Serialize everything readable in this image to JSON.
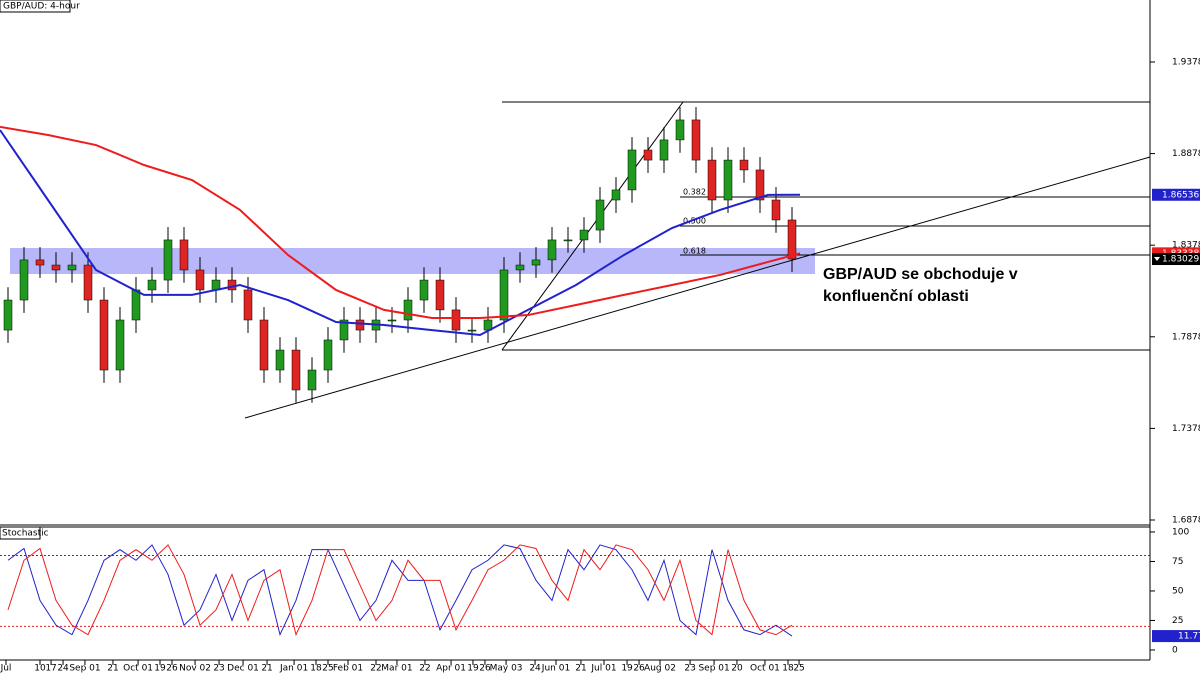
{
  "chart_data": [
    {
      "type": "candlestick",
      "title": "GBP/AUD: 4-hour",
      "x": [
        0,
        1,
        2,
        3,
        4,
        5,
        6,
        7,
        8,
        9,
        10,
        11,
        12,
        13,
        14,
        15,
        16,
        17,
        18,
        19,
        20,
        21,
        22,
        23,
        24,
        25,
        26,
        27,
        28,
        29,
        30,
        31,
        32,
        33,
        34,
        35,
        36,
        37,
        38,
        39,
        40,
        41,
        42,
        43,
        44,
        45,
        46,
        47,
        48,
        49
      ],
      "open": [
        1.7915,
        1.8079,
        1.8298,
        1.827,
        1.8243,
        1.827,
        1.8079,
        1.7697,
        1.797,
        1.8134,
        1.8188,
        1.8407,
        1.8243,
        1.8134,
        1.8188,
        1.8134,
        1.797,
        1.7697,
        1.7806,
        1.7588,
        1.7697,
        1.7861,
        1.797,
        1.7915,
        1.797,
        1.797,
        1.8079,
        1.8188,
        1.8025,
        1.7915,
        1.7915,
        1.797,
        1.8243,
        1.827,
        1.8298,
        1.8407,
        1.8407,
        1.8461,
        1.8625,
        1.868,
        1.8898,
        1.8843,
        1.8953,
        1.9062,
        1.8843,
        1.8625,
        1.8843,
        1.8789,
        1.8625,
        1.8516
      ],
      "high": [
        1.8149,
        1.8368,
        1.8368,
        1.834,
        1.834,
        1.834,
        1.8149,
        1.804,
        1.8204,
        1.8258,
        1.8477,
        1.8477,
        1.8313,
        1.8258,
        1.8258,
        1.8204,
        1.804,
        1.7876,
        1.7876,
        1.7767,
        1.7931,
        1.804,
        1.804,
        1.804,
        1.804,
        1.8149,
        1.8258,
        1.8258,
        1.8095,
        1.7985,
        1.804,
        1.8313,
        1.834,
        1.8368,
        1.8477,
        1.8477,
        1.8531,
        1.8695,
        1.875,
        1.8968,
        1.8968,
        1.9023,
        1.9132,
        1.9132,
        1.8913,
        1.8913,
        1.8913,
        1.8859,
        1.8695,
        1.8586
      ],
      "low": [
        1.7845,
        1.8009,
        1.82,
        1.8173,
        1.8173,
        1.8009,
        1.7627,
        1.7627,
        1.79,
        1.8064,
        1.8118,
        1.8173,
        1.8064,
        1.8064,
        1.8064,
        1.79,
        1.7627,
        1.7627,
        1.7518,
        1.7518,
        1.7627,
        1.7791,
        1.7845,
        1.7845,
        1.79,
        1.79,
        1.8009,
        1.7955,
        1.7845,
        1.7845,
        1.7845,
        1.79,
        1.8173,
        1.82,
        1.8228,
        1.8337,
        1.8337,
        1.8391,
        1.8555,
        1.861,
        1.8773,
        1.8773,
        1.8883,
        1.8773,
        1.8555,
        1.8555,
        1.8719,
        1.8555,
        1.8446,
        1.8233
      ],
      "close": [
        1.8079,
        1.8298,
        1.827,
        1.8243,
        1.827,
        1.8079,
        1.7697,
        1.797,
        1.8134,
        1.8188,
        1.8407,
        1.8243,
        1.8134,
        1.8188,
        1.8134,
        1.797,
        1.7697,
        1.7806,
        1.7588,
        1.7697,
        1.7861,
        1.797,
        1.7915,
        1.797,
        1.797,
        1.8079,
        1.8188,
        1.8025,
        1.7915,
        1.7915,
        1.797,
        1.8243,
        1.827,
        1.8298,
        1.8407,
        1.8407,
        1.8461,
        1.8625,
        1.868,
        1.8898,
        1.8843,
        1.8953,
        1.9062,
        1.8843,
        1.8625,
        1.8843,
        1.8789,
        1.8625,
        1.8516,
        1.83029
      ],
      "up_color": "#1f9a1f",
      "down_color": "#e02424",
      "series": [
        {
          "color": "#2222cc",
          "x": [
            -0.5,
            2.5,
            5.5,
            8.5,
            11.5,
            14.5,
            17.5,
            20.5,
            23.5,
            26.5,
            29.5,
            32.5,
            35.5,
            38.5,
            41.5,
            44.5,
            47.5,
            49.5
          ],
          "values": [
            1.9007,
            1.8625,
            1.8243,
            1.8107,
            1.8107,
            1.8161,
            1.8079,
            1.7959,
            1.7943,
            1.7915,
            1.7888,
            1.8025,
            1.8161,
            1.8325,
            1.8472,
            1.8571,
            1.8653,
            1.86536
          ]
        },
        {
          "color": "#ee1c1c",
          "x": [
            -0.5,
            2.5,
            5.5,
            8.5,
            11.5,
            14.5,
            17.5,
            20.5,
            23.5,
            26.5,
            29.5,
            32.5,
            35.5,
            38.5,
            41.5,
            44.5,
            47.5,
            49.5
          ],
          "values": [
            1.9024,
            1.898,
            1.8925,
            1.8816,
            1.8734,
            1.8571,
            1.8325,
            1.8134,
            1.8025,
            1.7981,
            1.7981,
            1.7997,
            1.8052,
            1.8107,
            1.8161,
            1.8216,
            1.8287,
            1.83338
          ]
        }
      ],
      "fib_labels": [
        "0.382",
        "0.500",
        "0.618"
      ],
      "annotation": [
        "GBP/AUD se obchoduje v",
        "konfluenční oblasti"
      ],
      "xlim": [
        -0.5,
        71.375
      ],
      "ylim": [
        1.6851,
        1.97167
      ],
      "yticks": [
        1.68783,
        1.73783,
        1.78783,
        1.83783,
        1.88783,
        1.93783
      ],
      "xticks": [
        {
          "value": -0.125,
          "label": "Jul"
        },
        {
          "value": 2,
          "label": "10"
        },
        {
          "value": 2.69,
          "label": "17"
        },
        {
          "value": 3.44,
          "label": "24"
        },
        {
          "value": 4.81,
          "label": "Sep 01"
        },
        {
          "value": 6.56,
          "label": "21"
        },
        {
          "value": 8.13,
          "label": "Oct 01"
        },
        {
          "value": 9.5,
          "label": "19"
        },
        {
          "value": 10.25,
          "label": "26"
        },
        {
          "value": 11.69,
          "label": "Nov 02"
        },
        {
          "value": 13.19,
          "label": "23"
        },
        {
          "value": 14.69,
          "label": "Dec 01"
        },
        {
          "value": 16.19,
          "label": "21"
        },
        {
          "value": 17.88,
          "label": "Jan 01"
        },
        {
          "value": 19.25,
          "label": "18"
        },
        {
          "value": 20,
          "label": "25"
        },
        {
          "value": 21.25,
          "label": "Feb 01"
        },
        {
          "value": 23,
          "label": "22"
        },
        {
          "value": 24.31,
          "label": "Mar 01"
        },
        {
          "value": 26.06,
          "label": "22"
        },
        {
          "value": 27.69,
          "label": "Apr 01"
        },
        {
          "value": 29.06,
          "label": "19"
        },
        {
          "value": 29.81,
          "label": "26"
        },
        {
          "value": 31.13,
          "label": "May 03"
        },
        {
          "value": 32.94,
          "label": "24"
        },
        {
          "value": 34.25,
          "label": "Jun 01"
        },
        {
          "value": 35.81,
          "label": "21"
        },
        {
          "value": 37.25,
          "label": "Jul 01"
        },
        {
          "value": 38.69,
          "label": "19"
        },
        {
          "value": 39.44,
          "label": "26"
        },
        {
          "value": 40.75,
          "label": "Aug 02"
        },
        {
          "value": 42.63,
          "label": "23"
        },
        {
          "value": 44.13,
          "label": "Sep 01"
        },
        {
          "value": 45.56,
          "label": "20"
        },
        {
          "value": 47.31,
          "label": "Oct 01"
        },
        {
          "value": 48.75,
          "label": "18"
        },
        {
          "value": 49.44,
          "label": "25"
        }
      ]
    },
    {
      "type": "line",
      "title": "Stochastic",
      "x": [
        0,
        1,
        2,
        3,
        4,
        5,
        6,
        7,
        8,
        9,
        10,
        11,
        12,
        13,
        14,
        15,
        16,
        17,
        18,
        19,
        20,
        21,
        22,
        23,
        24,
        25,
        26,
        27,
        28,
        29,
        30,
        31,
        32,
        33,
        34,
        35,
        36,
        37,
        38,
        39,
        40,
        41,
        42,
        43,
        44,
        45,
        46,
        47,
        48,
        49
      ],
      "series": [
        {
          "color": "#2222cc",
          "values": [
            76,
            86,
            42,
            21,
            13,
            42,
            76,
            85,
            76,
            89,
            64,
            21,
            34,
            64,
            25,
            59,
            68,
            13,
            42,
            85,
            85,
            55,
            25,
            42,
            76,
            59,
            59,
            17,
            42,
            68,
            76,
            89,
            86,
            59,
            42,
            85,
            68,
            89,
            85,
            68,
            42,
            76,
            25,
            13,
            85,
            42,
            17,
            13,
            21,
            11.77
          ]
        },
        {
          "color": "#ee1c1c",
          "values": [
            34,
            76,
            86,
            42,
            21,
            13,
            42,
            76,
            85,
            76,
            89,
            64,
            21,
            34,
            64,
            25,
            59,
            68,
            13,
            42,
            85,
            85,
            55,
            25,
            42,
            76,
            59,
            59,
            17,
            42,
            68,
            76,
            89,
            86,
            59,
            42,
            85,
            68,
            89,
            85,
            68,
            42,
            76,
            25,
            13,
            85,
            42,
            17,
            13,
            21
          ]
        }
      ],
      "levels": [
        {
          "value": 80,
          "color": "#3333cc"
        },
        {
          "value": 20,
          "color": "#e02020"
        }
      ],
      "ylim": [
        -8.5,
        104.2
      ],
      "yticks": [
        0,
        25,
        50,
        75,
        100
      ]
    }
  ]
}
